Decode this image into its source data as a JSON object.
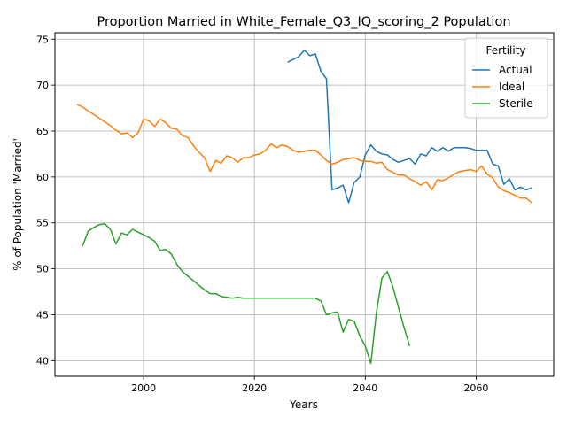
{
  "chart_data": {
    "type": "line",
    "title": "Proportion Married in White_Female_Q3_IQ_scoring_2 Population",
    "xlabel": "Years",
    "ylabel": "% of Population 'Married'",
    "xlim": [
      1984,
      2074
    ],
    "ylim": [
      38.3,
      75.7
    ],
    "x_ticks": [
      2000,
      2020,
      2040,
      2060
    ],
    "x_tick_labels": [
      "2000",
      "2020",
      "2040",
      "2060"
    ],
    "y_ticks": [
      40,
      45,
      50,
      55,
      60,
      65,
      70,
      75
    ],
    "y_tick_labels": [
      "40",
      "45",
      "50",
      "55",
      "60",
      "65",
      "70",
      "75"
    ],
    "grid": true,
    "legend": {
      "title": "Fertility",
      "placement": "top-right"
    },
    "series": [
      {
        "name": "Actual",
        "color": "#1f77b4",
        "x": [
          2026,
          2027,
          2028,
          2029,
          2030,
          2031,
          2032,
          2033,
          2034,
          2035,
          2036,
          2037,
          2038,
          2039,
          2040,
          2041,
          2042,
          2043,
          2044,
          2045,
          2046,
          2047,
          2048,
          2049,
          2050,
          2051,
          2052,
          2053,
          2054,
          2055,
          2056,
          2057,
          2058,
          2059,
          2060,
          2061,
          2062,
          2063,
          2064,
          2065,
          2066,
          2067,
          2068,
          2069,
          2070
        ],
        "y": [
          72.5,
          72.8,
          73.1,
          73.8,
          73.2,
          73.4,
          71.5,
          70.7,
          58.6,
          58.8,
          59.1,
          57.2,
          59.4,
          60.0,
          62.4,
          63.5,
          62.8,
          62.5,
          62.4,
          61.9,
          61.6,
          61.8,
          62.0,
          61.4,
          62.5,
          62.3,
          63.2,
          62.8,
          63.2,
          62.8,
          63.2,
          63.2,
          63.2,
          63.1,
          62.9,
          62.9,
          62.9,
          61.4,
          61.2,
          59.2,
          59.8,
          58.6,
          58.9,
          58.6,
          58.8
        ]
      },
      {
        "name": "Ideal",
        "color": "#ff7f0e",
        "x": [
          1988,
          1989,
          1990,
          1991,
          1992,
          1993,
          1994,
          1995,
          1996,
          1997,
          1998,
          1999,
          2000,
          2001,
          2002,
          2003,
          2004,
          2005,
          2006,
          2007,
          2008,
          2009,
          2010,
          2011,
          2012,
          2013,
          2014,
          2015,
          2016,
          2017,
          2018,
          2019,
          2020,
          2021,
          2022,
          2023,
          2024,
          2025,
          2026,
          2027,
          2028,
          2029,
          2030,
          2031,
          2032,
          2033,
          2034,
          2035,
          2036,
          2037,
          2038,
          2039,
          2040,
          2041,
          2042,
          2043,
          2044,
          2045,
          2046,
          2047,
          2048,
          2049,
          2050,
          2051,
          2052,
          2053,
          2054,
          2055,
          2056,
          2057,
          2058,
          2059,
          2060,
          2061,
          2062,
          2063,
          2064,
          2065,
          2066,
          2067,
          2068,
          2069,
          2070
        ],
        "y": [
          67.9,
          67.6,
          67.2,
          66.8,
          66.4,
          66.0,
          65.6,
          65.1,
          64.7,
          64.8,
          64.3,
          64.8,
          66.3,
          66.1,
          65.5,
          66.3,
          65.9,
          65.3,
          65.2,
          64.5,
          64.3,
          63.4,
          62.7,
          62.1,
          60.6,
          61.8,
          61.5,
          62.3,
          62.1,
          61.6,
          62.1,
          62.1,
          62.4,
          62.5,
          62.9,
          63.6,
          63.2,
          63.5,
          63.3,
          62.9,
          62.7,
          62.8,
          62.9,
          62.9,
          62.4,
          61.8,
          61.4,
          61.6,
          61.9,
          62.0,
          62.1,
          61.8,
          61.7,
          61.7,
          61.5,
          61.6,
          60.8,
          60.5,
          60.2,
          60.2,
          59.8,
          59.5,
          59.1,
          59.5,
          58.6,
          59.7,
          59.6,
          59.9,
          60.3,
          60.6,
          60.7,
          60.8,
          60.6,
          61.2,
          60.3,
          59.9,
          58.9,
          58.5,
          58.3,
          58.0,
          57.7,
          57.7,
          57.2
        ]
      },
      {
        "name": "Sterile",
        "color": "#2ca02c",
        "x": [
          1989,
          1990,
          1991,
          1992,
          1993,
          1994,
          1995,
          1996,
          1997,
          1998,
          1999,
          2000,
          2001,
          2002,
          2003,
          2004,
          2005,
          2006,
          2007,
          2008,
          2009,
          2010,
          2011,
          2012,
          2013,
          2014,
          2015,
          2016,
          2017,
          2018,
          2019,
          2020,
          2021,
          2022,
          2023,
          2024,
          2025,
          2026,
          2027,
          2028,
          2029,
          2030,
          2031,
          2032,
          2033,
          2034,
          2035,
          2036,
          2037,
          2038,
          2039,
          2040,
          2041,
          2042,
          2043,
          2044,
          2045,
          2046,
          2047,
          2048
        ],
        "y": [
          52.5,
          54.1,
          54.5,
          54.8,
          54.9,
          54.3,
          52.7,
          53.9,
          53.7,
          54.3,
          54.0,
          53.7,
          53.4,
          53.0,
          52.0,
          52.1,
          51.6,
          50.5,
          49.7,
          49.2,
          48.7,
          48.2,
          47.7,
          47.3,
          47.3,
          47.0,
          46.9,
          46.8,
          46.9,
          46.8,
          46.8,
          46.8,
          46.8,
          46.8,
          46.8,
          46.8,
          46.8,
          46.8,
          46.8,
          46.8,
          46.8,
          46.8,
          46.8,
          46.5,
          45.0,
          45.2,
          45.3,
          43.1,
          44.5,
          44.3,
          42.7,
          41.6,
          39.7,
          45.2,
          49.0,
          49.7,
          48.0,
          45.8,
          43.6,
          41.6
        ]
      }
    ]
  }
}
